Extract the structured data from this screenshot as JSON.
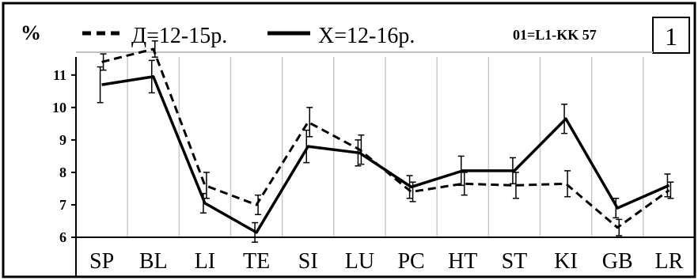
{
  "chart_data": {
    "type": "line",
    "y_unit_label": "%",
    "panel_badge": "1",
    "corner_label": "01=L1-KK 57",
    "categories": [
      "SP",
      "BL",
      "LI",
      "TE",
      "SI",
      "LU",
      "PC",
      "HT",
      "ST",
      "KI",
      "GB",
      "LR"
    ],
    "ylim": [
      6,
      11.8
    ],
    "yticks": [
      6,
      7,
      8,
      9,
      10,
      11
    ],
    "grid": "vertical",
    "legend_position": "top",
    "series": [
      {
        "name": "Д=12-15р.",
        "style": "dashed",
        "color": "#000000",
        "values": [
          11.4,
          11.8,
          7.6,
          7.0,
          9.55,
          8.7,
          7.4,
          7.65,
          7.6,
          7.65,
          6.3,
          7.45
        ],
        "errors": [
          0.25,
          0.25,
          0.4,
          0.3,
          0.45,
          0.45,
          0.3,
          0.35,
          0.4,
          0.4,
          0.25,
          0.25
        ]
      },
      {
        "name": "Х=12-16р.",
        "style": "solid",
        "color": "#000000",
        "values": [
          10.7,
          10.95,
          7.05,
          6.15,
          8.8,
          8.6,
          7.55,
          8.05,
          8.05,
          9.65,
          6.9,
          7.6
        ],
        "errors": [
          0.55,
          0.5,
          0.3,
          0.3,
          0.5,
          0.4,
          0.35,
          0.45,
          0.4,
          0.45,
          0.3,
          0.35
        ]
      }
    ]
  }
}
